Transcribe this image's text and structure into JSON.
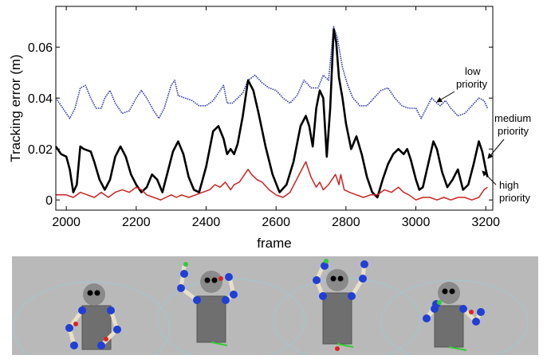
{
  "chart_data": {
    "type": "line",
    "title": "",
    "xlabel": "frame",
    "ylabel": "Tracking error (m)",
    "xlim": [
      1970,
      3220
    ],
    "ylim": [
      -0.004,
      0.076
    ],
    "x_ticks": [
      2000,
      2200,
      2400,
      2600,
      2800,
      3000,
      3200
    ],
    "y_ticks": [
      0,
      0.02,
      0.04,
      0.06
    ],
    "y_tick_labels": [
      "0",
      "0.02",
      "0.04",
      "0.06"
    ],
    "grid": false,
    "legend": "none",
    "annotations": [
      {
        "text_lines": [
          "low",
          "priority"
        ],
        "series": "low"
      },
      {
        "text_lines": [
          "medium",
          "priority"
        ],
        "series": "medium"
      },
      {
        "text_lines": [
          "high",
          "priority"
        ],
        "series": "high"
      }
    ],
    "series": [
      {
        "key": "low",
        "color": "#2b35a8",
        "style": "dotted",
        "points": [
          [
            1970,
            0.04
          ],
          [
            1990,
            0.036
          ],
          [
            2010,
            0.032
          ],
          [
            2025,
            0.036
          ],
          [
            2040,
            0.044
          ],
          [
            2055,
            0.045
          ],
          [
            2070,
            0.04
          ],
          [
            2085,
            0.036
          ],
          [
            2100,
            0.036
          ],
          [
            2110,
            0.04
          ],
          [
            2125,
            0.043
          ],
          [
            2140,
            0.038
          ],
          [
            2160,
            0.034
          ],
          [
            2180,
            0.035
          ],
          [
            2200,
            0.04
          ],
          [
            2215,
            0.043
          ],
          [
            2230,
            0.04
          ],
          [
            2250,
            0.035
          ],
          [
            2265,
            0.032
          ],
          [
            2280,
            0.036
          ],
          [
            2300,
            0.045
          ],
          [
            2310,
            0.047
          ],
          [
            2320,
            0.041
          ],
          [
            2340,
            0.04
          ],
          [
            2360,
            0.039
          ],
          [
            2380,
            0.037
          ],
          [
            2400,
            0.037
          ],
          [
            2420,
            0.039
          ],
          [
            2440,
            0.043
          ],
          [
            2450,
            0.045
          ],
          [
            2460,
            0.038
          ],
          [
            2475,
            0.038
          ],
          [
            2490,
            0.04
          ],
          [
            2505,
            0.042
          ],
          [
            2520,
            0.047
          ],
          [
            2540,
            0.049
          ],
          [
            2560,
            0.046
          ],
          [
            2580,
            0.044
          ],
          [
            2600,
            0.043
          ],
          [
            2620,
            0.04
          ],
          [
            2640,
            0.038
          ],
          [
            2660,
            0.041
          ],
          [
            2680,
            0.047
          ],
          [
            2700,
            0.044
          ],
          [
            2720,
            0.044
          ],
          [
            2735,
            0.049
          ],
          [
            2750,
            0.047
          ],
          [
            2765,
            0.068
          ],
          [
            2775,
            0.064
          ],
          [
            2790,
            0.052
          ],
          [
            2805,
            0.045
          ],
          [
            2820,
            0.04
          ],
          [
            2840,
            0.037
          ],
          [
            2860,
            0.037
          ],
          [
            2880,
            0.04
          ],
          [
            2900,
            0.043
          ],
          [
            2920,
            0.044
          ],
          [
            2940,
            0.04
          ],
          [
            2960,
            0.037
          ],
          [
            2980,
            0.036
          ],
          [
            3000,
            0.036
          ],
          [
            3015,
            0.032
          ],
          [
            3030,
            0.036
          ],
          [
            3045,
            0.04
          ],
          [
            3060,
            0.038
          ],
          [
            3070,
            0.037
          ],
          [
            3085,
            0.039
          ],
          [
            3100,
            0.036
          ],
          [
            3120,
            0.033
          ],
          [
            3140,
            0.034
          ],
          [
            3160,
            0.037
          ],
          [
            3180,
            0.04
          ],
          [
            3195,
            0.039
          ],
          [
            3205,
            0.036
          ]
        ]
      },
      {
        "key": "medium",
        "color": "#000000",
        "style": "solid",
        "points": [
          [
            1970,
            0.021
          ],
          [
            1985,
            0.018
          ],
          [
            2000,
            0.017
          ],
          [
            2010,
            0.012
          ],
          [
            2020,
            0.003
          ],
          [
            2030,
            0.006
          ],
          [
            2040,
            0.021
          ],
          [
            2050,
            0.02
          ],
          [
            2070,
            0.019
          ],
          [
            2080,
            0.015
          ],
          [
            2095,
            0.008
          ],
          [
            2110,
            0.004
          ],
          [
            2125,
            0.008
          ],
          [
            2140,
            0.017
          ],
          [
            2155,
            0.021
          ],
          [
            2170,
            0.017
          ],
          [
            2185,
            0.01
          ],
          [
            2200,
            0.006
          ],
          [
            2215,
            0.003
          ],
          [
            2230,
            0.005
          ],
          [
            2245,
            0.01
          ],
          [
            2260,
            0.008
          ],
          [
            2275,
            0.003
          ],
          [
            2290,
            0.011
          ],
          [
            2305,
            0.019
          ],
          [
            2320,
            0.023
          ],
          [
            2335,
            0.018
          ],
          [
            2350,
            0.009
          ],
          [
            2365,
            0.004
          ],
          [
            2380,
            0.003
          ],
          [
            2400,
            0.013
          ],
          [
            2420,
            0.027
          ],
          [
            2435,
            0.029
          ],
          [
            2450,
            0.024
          ],
          [
            2460,
            0.018
          ],
          [
            2470,
            0.02
          ],
          [
            2480,
            0.018
          ],
          [
            2490,
            0.022
          ],
          [
            2505,
            0.033
          ],
          [
            2520,
            0.047
          ],
          [
            2535,
            0.043
          ],
          [
            2550,
            0.034
          ],
          [
            2570,
            0.021
          ],
          [
            2590,
            0.01
          ],
          [
            2610,
            0.003
          ],
          [
            2630,
            0.006
          ],
          [
            2650,
            0.015
          ],
          [
            2670,
            0.029
          ],
          [
            2685,
            0.033
          ],
          [
            2695,
            0.029
          ],
          [
            2705,
            0.021
          ],
          [
            2715,
            0.036
          ],
          [
            2725,
            0.043
          ],
          [
            2735,
            0.04
          ],
          [
            2745,
            0.017
          ],
          [
            2755,
            0.036
          ],
          [
            2765,
            0.067
          ],
          [
            2772,
            0.062
          ],
          [
            2780,
            0.048
          ],
          [
            2790,
            0.04
          ],
          [
            2800,
            0.03
          ],
          [
            2815,
            0.02
          ],
          [
            2830,
            0.025
          ],
          [
            2845,
            0.018
          ],
          [
            2860,
            0.009
          ],
          [
            2875,
            0.003
          ],
          [
            2890,
            0.001
          ],
          [
            2905,
            0.008
          ],
          [
            2920,
            0.014
          ],
          [
            2935,
            0.018
          ],
          [
            2950,
            0.02
          ],
          [
            2965,
            0.018
          ],
          [
            2975,
            0.02
          ],
          [
            2985,
            0.016
          ],
          [
            3000,
            0.008
          ],
          [
            3010,
            0.004
          ],
          [
            3020,
            0.005
          ],
          [
            3035,
            0.014
          ],
          [
            3050,
            0.023
          ],
          [
            3060,
            0.02
          ],
          [
            3075,
            0.011
          ],
          [
            3090,
            0.005
          ],
          [
            3105,
            0.008
          ],
          [
            3120,
            0.012
          ],
          [
            3135,
            0.004
          ],
          [
            3150,
            0.006
          ],
          [
            3165,
            0.014
          ],
          [
            3180,
            0.023
          ],
          [
            3190,
            0.019
          ],
          [
            3200,
            0.012
          ],
          [
            3205,
            0.009
          ]
        ]
      },
      {
        "key": "high",
        "color": "#cc2222",
        "style": "solid",
        "points": [
          [
            1970,
            0.002
          ],
          [
            2000,
            0.002
          ],
          [
            2020,
            0.001
          ],
          [
            2040,
            0.003
          ],
          [
            2060,
            0.002
          ],
          [
            2080,
            0.001
          ],
          [
            2100,
            0.003
          ],
          [
            2120,
            0.001
          ],
          [
            2140,
            0.003
          ],
          [
            2160,
            0.004
          ],
          [
            2180,
            0.003
          ],
          [
            2200,
            0.005
          ],
          [
            2215,
            0.004
          ],
          [
            2230,
            0.002
          ],
          [
            2250,
            0.001
          ],
          [
            2270,
            0.0
          ],
          [
            2285,
            0.001
          ],
          [
            2300,
            0.002
          ],
          [
            2315,
            0.001
          ],
          [
            2330,
            0.002
          ],
          [
            2350,
            0.001
          ],
          [
            2370,
            0.002
          ],
          [
            2390,
            0.003
          ],
          [
            2410,
            0.004
          ],
          [
            2425,
            0.006
          ],
          [
            2440,
            0.005
          ],
          [
            2455,
            0.007
          ],
          [
            2470,
            0.004
          ],
          [
            2480,
            0.006
          ],
          [
            2495,
            0.007
          ],
          [
            2510,
            0.01
          ],
          [
            2520,
            0.012
          ],
          [
            2530,
            0.01
          ],
          [
            2545,
            0.008
          ],
          [
            2560,
            0.007
          ],
          [
            2580,
            0.004
          ],
          [
            2600,
            0.002
          ],
          [
            2620,
            0.001
          ],
          [
            2640,
            0.003
          ],
          [
            2655,
            0.007
          ],
          [
            2670,
            0.011
          ],
          [
            2685,
            0.015
          ],
          [
            2700,
            0.009
          ],
          [
            2715,
            0.005
          ],
          [
            2725,
            0.007
          ],
          [
            2735,
            0.004
          ],
          [
            2750,
            0.006
          ],
          [
            2760,
            0.008
          ],
          [
            2770,
            0.01
          ],
          [
            2780,
            0.006
          ],
          [
            2785,
            0.01
          ],
          [
            2795,
            0.004
          ],
          [
            2810,
            0.003
          ],
          [
            2830,
            0.002
          ],
          [
            2850,
            0.001
          ],
          [
            2870,
            0.002
          ],
          [
            2890,
            0.002
          ],
          [
            2910,
            0.004
          ],
          [
            2930,
            0.003
          ],
          [
            2950,
            0.005
          ],
          [
            2965,
            0.003
          ],
          [
            2980,
            0.002
          ],
          [
            3000,
            0.0
          ],
          [
            3020,
            0.001
          ],
          [
            3040,
            0.001
          ],
          [
            3060,
            0.0
          ],
          [
            3080,
            0.001
          ],
          [
            3100,
            0.0
          ],
          [
            3120,
            0.001
          ],
          [
            3140,
            0.001
          ],
          [
            3160,
            0.0
          ],
          [
            3180,
            0.001
          ],
          [
            3195,
            0.004
          ],
          [
            3205,
            0.005
          ]
        ]
      }
    ]
  }
}
